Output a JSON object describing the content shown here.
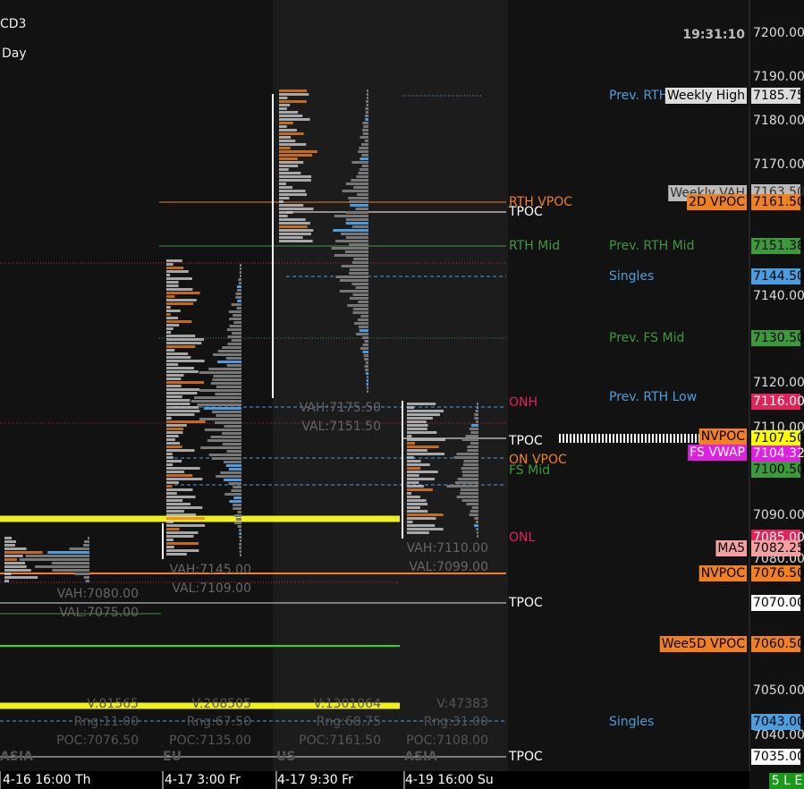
{
  "header": {
    "symbol": "CD3",
    "period": "Day",
    "clock": "19:31:10"
  },
  "axis_labels": [
    "7200.00",
    "7190.00",
    "7180.00",
    "7170.00",
    "7140.00",
    "7120.00",
    "7110.00",
    "7090.00",
    "7080.00",
    "7050.00",
    "7040.00"
  ],
  "side_labels": [
    "Prev. RTH",
    "Prev. RTH Mid",
    "Singles",
    "Prev. FS Mid",
    "Prev. RTH Low",
    "Singles"
  ],
  "tag_boxes": [
    "Weekly High",
    "Weekly VAH",
    "2D VPOC",
    "NVPOC",
    "FS VWAP",
    "MA5",
    "NVPOC",
    "Wee5D VPOC"
  ],
  "price_boxes": [
    "7185.75",
    "7163.50",
    "7161.50",
    "7151.38",
    "7144.50",
    "7130.50",
    "7116.00",
    "7107.50",
    "7104.32",
    "7100.50",
    "7085.00",
    "7082.25",
    "7076.50",
    "7070.00",
    "7060.50",
    "7043.00",
    "7035.00"
  ],
  "chart_labels": [
    "RTH VPOC",
    "TPOC",
    "RTH Mid",
    "ONH",
    "TPOC",
    "ON VPOC",
    "FS Mid",
    "ONL",
    "TPOC",
    "TPOC"
  ],
  "sessions": [
    {
      "name": "ASIA",
      "time": "4-16  16:00 Th",
      "vah": "VAH:7080.00",
      "val": "VAL:7075.00",
      "volume": "V:81565",
      "range": "Rng:11.00",
      "poc": "POC:7076.50"
    },
    {
      "name": "EU",
      "time": "4-17  3:00 Fr",
      "vah": "VAH:7145.00",
      "val": "VAL:7109.00",
      "volume": "V:268505",
      "range": "Rng:67.50",
      "poc": "POC:7135.00"
    },
    {
      "name": "US",
      "time": "4-17  9:30 Fr",
      "vah": "VAH:7175.50",
      "val": "VAL:7151.50",
      "volume": "V:1301064",
      "range": "Rng:68.75",
      "poc": "POC:7161.50"
    },
    {
      "name": "ASIA",
      "time": "4-19  16:00 Su",
      "vah": "VAH:7110.00",
      "val": "VAL:7099.00",
      "volume": "V:47383",
      "range": "Rng:31.00",
      "poc": "POC:7108.00"
    }
  ],
  "status": "5 L E"
}
